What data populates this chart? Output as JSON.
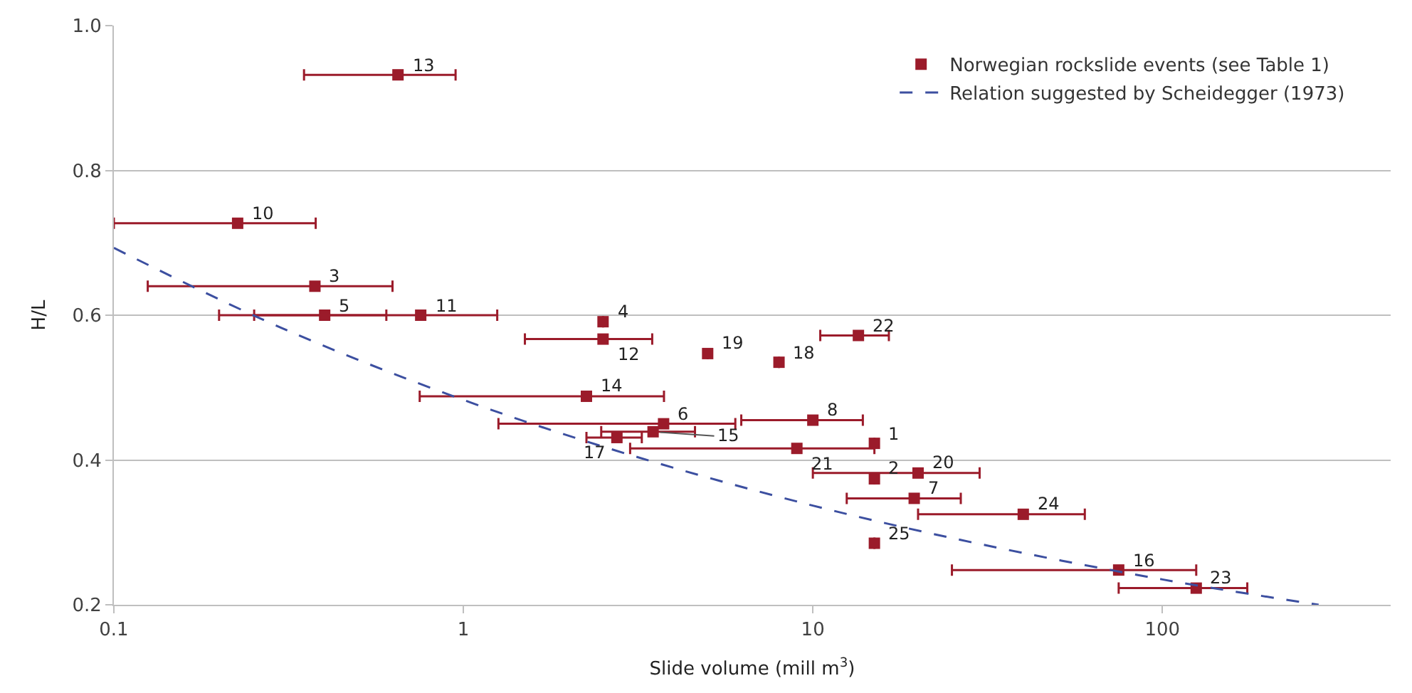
{
  "chart_data": {
    "type": "scatter",
    "xlabel": "Slide volume (mill m$^{3}$)",
    "ylabel": "H/L",
    "log": "x",
    "grid": "y",
    "legend": "top right",
    "xlim": [
      0.1,
      450
    ],
    "xticks": [
      0.1,
      1,
      10,
      100
    ],
    "ylim": [
      0.2,
      1.0
    ],
    "yticks": [
      0.2,
      0.4,
      0.6,
      0.8,
      {
        "value": 1.0,
        "label": "1.0"
      }
    ],
    "series": [
      {
        "name": "Norwegian rockslide events (see Table 1)",
        "marker": "square",
        "color": "#9b1b2a",
        "x": [
          0.65,
          0.226,
          0.376,
          0.401,
          0.755,
          2.51,
          2.51,
          2.25,
          13.5,
          5,
          8.0,
          3.74,
          10,
          3.49,
          2.75,
          9.0,
          15,
          20,
          15,
          19.5,
          40,
          15,
          75,
          125
        ],
        "values": [
          0.932,
          0.727,
          0.64,
          0.6,
          0.6,
          0.591,
          0.567,
          0.488,
          0.572,
          0.547,
          0.535,
          0.45,
          0.455,
          0.439,
          0.431,
          0.416,
          0.423,
          0.382,
          0.374,
          0.347,
          0.325,
          0.285,
          0.248,
          0.223
        ],
        "xerrors": [
          [
            0.35,
            0.95
          ],
          [
            0.1,
            0.378
          ],
          [
            0.125,
            0.627
          ],
          [
            0.2,
            0.602
          ],
          [
            0.252,
            1.25
          ],
          null,
          [
            1.5,
            3.47
          ],
          [
            0.75,
            3.75
          ],
          [
            10.5,
            16.5
          ],
          null,
          null,
          [
            1.26,
            6.0
          ],
          [
            6.24,
            13.9
          ],
          [
            2.48,
            4.6
          ],
          [
            2.25,
            3.24
          ],
          [
            3.0,
            15
          ],
          null,
          [
            10,
            30
          ],
          null,
          [
            12.5,
            26.5
          ],
          [
            20,
            60
          ],
          null,
          [
            25,
            125
          ],
          [
            75,
            175
          ]
        ]
      },
      {
        "name": "Relation suggested by Scheidegger (1973)",
        "type": "line",
        "marker": "none",
        "line_style": "dashed",
        "color": "#3c4fa0",
        "x": [
          0.1,
          0.3,
          1,
          3,
          10,
          30,
          100,
          280
        ],
        "values": [
          0.693,
          0.583,
          0.483,
          0.407,
          0.337,
          0.284,
          0.235,
          0.2
        ]
      }
    ],
    "annotations": [
      {
        "text": "13",
        "x": 0.65,
        "y": 0.932
      },
      {
        "text": "10",
        "x": 0.226,
        "y": 0.727
      },
      {
        "text": "3",
        "x": 0.376,
        "y": 0.64
      },
      {
        "text": "5",
        "x": 0.401,
        "y": 0.6
      },
      {
        "text": "11",
        "x": 0.755,
        "y": 0.6
      },
      {
        "text": "4",
        "x": 2.51,
        "y": 0.591
      },
      {
        "text": "12",
        "x": 2.51,
        "y": 0.567
      },
      {
        "text": "14",
        "x": 2.25,
        "y": 0.488
      },
      {
        "text": "22",
        "x": 13.5,
        "y": 0.572
      },
      {
        "text": "19",
        "x": 5,
        "y": 0.547
      },
      {
        "text": "18",
        "x": 8.0,
        "y": 0.535
      },
      {
        "text": "6",
        "x": 3.74,
        "y": 0.45
      },
      {
        "text": "8",
        "x": 10,
        "y": 0.455
      },
      {
        "text": "15",
        "x": 3.49,
        "y": 0.439
      },
      {
        "text": "17",
        "x": 2.75,
        "y": 0.431
      },
      {
        "text": "21",
        "x": 9.0,
        "y": 0.416
      },
      {
        "text": "1",
        "x": 15,
        "y": 0.423
      },
      {
        "text": "20",
        "x": 20,
        "y": 0.382
      },
      {
        "text": "2",
        "x": 15,
        "y": 0.374
      },
      {
        "text": "7",
        "x": 19.5,
        "y": 0.347
      },
      {
        "text": "24",
        "x": 40,
        "y": 0.325
      },
      {
        "text": "25",
        "x": 15,
        "y": 0.285
      },
      {
        "text": "16",
        "x": 75,
        "y": 0.248
      },
      {
        "text": "23",
        "x": 125,
        "y": 0.223
      }
    ]
  }
}
